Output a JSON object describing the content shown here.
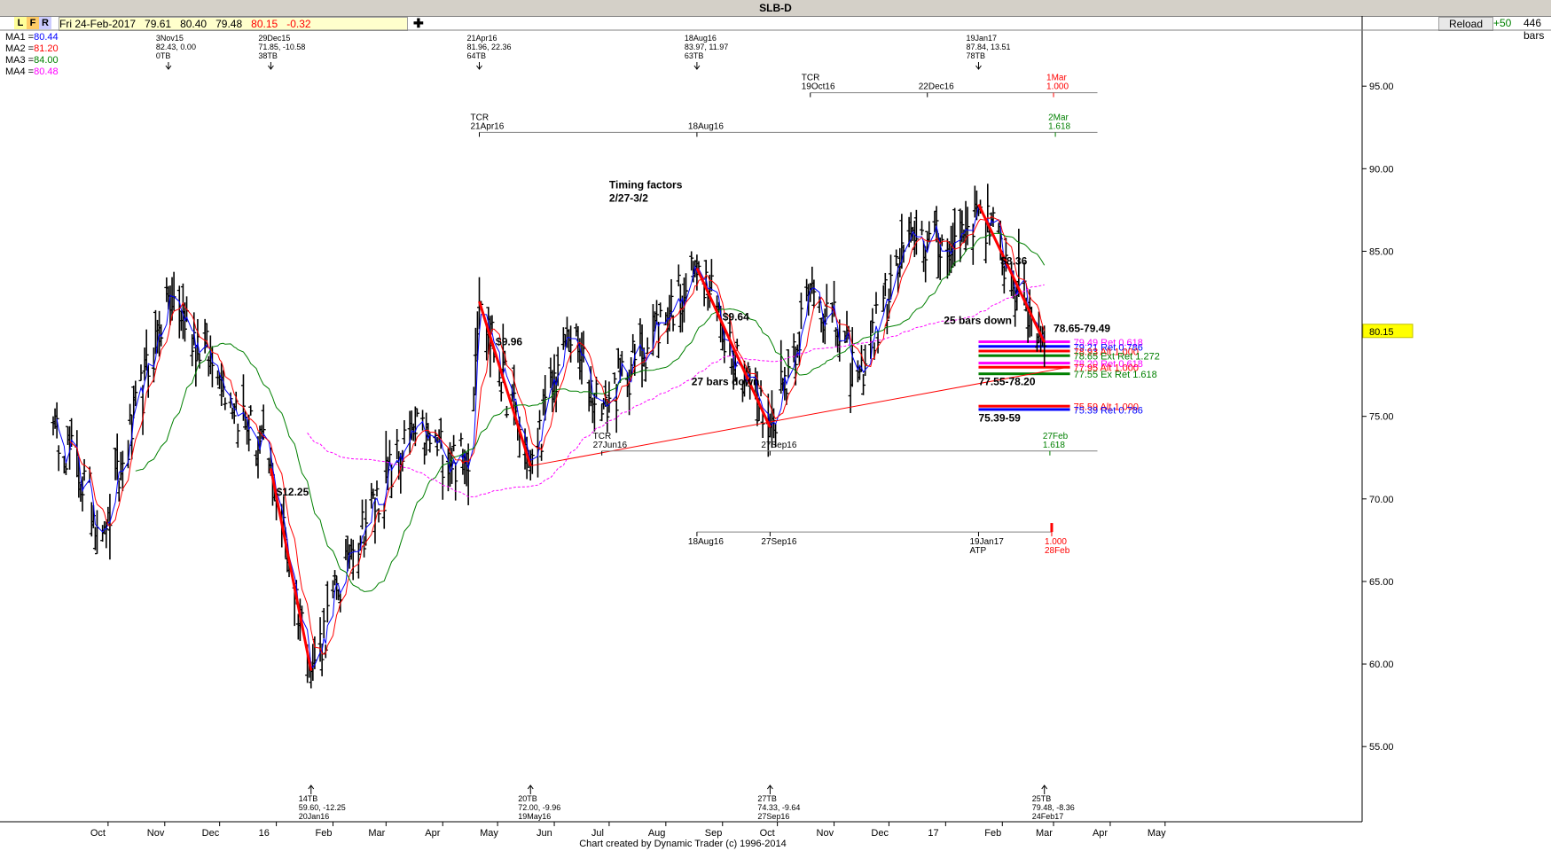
{
  "toolbar": {
    "title": "SLB-D",
    "buttons": [
      "L",
      "F",
      "R"
    ],
    "header_info": "Fri 24-Feb-2017   79.61   80.40   79.48",
    "header_close": "80.15",
    "header_change": "-0.32",
    "plus": "✚",
    "reload": "Reload",
    "plus50": "+50",
    "bars_count": "446 bars"
  },
  "ma_legend": [
    {
      "label": "MA1 =",
      "value": "80.44",
      "color": "#0000ff"
    },
    {
      "label": "MA2 =",
      "value": "81.20",
      "color": "#ff0000"
    },
    {
      "label": "MA3 =",
      "value": "84.00",
      "color": "#008000"
    },
    {
      "label": "MA4 =",
      "value": "80.48",
      "color": "#ff00ff"
    }
  ],
  "footer": "Chart created by Dynamic Trader  (c)  1996-2014",
  "chart_data": {
    "type": "ohlc_bar",
    "title": "SLB-D",
    "ylim": [
      50.5,
      98.5
    ],
    "yticks": [
      "95.00",
      "90.00",
      "85.00",
      "80.00",
      "75.00",
      "70.00",
      "65.00",
      "60.00",
      "55.00"
    ],
    "last_price": "80.15",
    "x_ticks": [
      "Oct",
      "Nov",
      "Dec",
      "16",
      "Feb",
      "Mar",
      "Apr",
      "May",
      "Jun",
      "Jul",
      "Aug",
      "Sep",
      "Oct",
      "Nov",
      "Dec",
      "17",
      "Feb",
      "Mar",
      "Apr",
      "May"
    ],
    "key_points": [
      {
        "date": "2015-09-01",
        "price": 75.0
      },
      {
        "date": "2015-09-29",
        "price": 68.0
      },
      {
        "date": "2015-11-03",
        "price": 82.43
      },
      {
        "date": "2015-12-01",
        "price": 77.5
      },
      {
        "date": "2015-12-29",
        "price": 71.85
      },
      {
        "date": "2016-01-20",
        "price": 59.6
      },
      {
        "date": "2016-02-11",
        "price": 67.0
      },
      {
        "date": "2016-03-15",
        "price": 74.0
      },
      {
        "date": "2016-04-15",
        "price": 72.0
      },
      {
        "date": "2016-04-21",
        "price": 81.96
      },
      {
        "date": "2016-05-19",
        "price": 72.0
      },
      {
        "date": "2016-06-08",
        "price": 80.0
      },
      {
        "date": "2016-06-27",
        "price": 75.5
      },
      {
        "date": "2016-08-18",
        "price": 83.97
      },
      {
        "date": "2016-09-27",
        "price": 74.33
      },
      {
        "date": "2016-10-20",
        "price": 83.0
      },
      {
        "date": "2016-11-14",
        "price": 77.5
      },
      {
        "date": "2016-12-13",
        "price": 86.0
      },
      {
        "date": "2017-01-03",
        "price": 85.0
      },
      {
        "date": "2017-01-19",
        "price": 87.84
      },
      {
        "date": "2017-02-24",
        "price": 79.48
      }
    ],
    "swing_lines": [
      {
        "from": [
          "2015-12-29",
          71.85
        ],
        "to": [
          "2016-01-20",
          59.6
        ],
        "label": "$12.25"
      },
      {
        "from": [
          "2016-04-21",
          81.96
        ],
        "to": [
          "2016-05-19",
          72.0
        ],
        "label": "$9.96"
      },
      {
        "from": [
          "2016-08-18",
          83.97
        ],
        "to": [
          "2016-09-27",
          74.33
        ],
        "label": "$9.64"
      },
      {
        "from": [
          "2017-01-19",
          87.84
        ],
        "to": [
          "2017-02-24",
          79.48
        ],
        "label": "$8.36"
      }
    ],
    "trendline": {
      "from": [
        "2016-05-19",
        72.0
      ],
      "to": [
        "2017-03-10",
        78.0
      ]
    },
    "pivot_labels_top": [
      {
        "date": "2015-11-03",
        "lines": [
          "3Nov15",
          "82.43, 0.00",
          "0TB"
        ]
      },
      {
        "date": "2015-12-29",
        "lines": [
          "29Dec15",
          "71.85, -10.58",
          "38TB"
        ]
      },
      {
        "date": "2016-04-21",
        "lines": [
          "21Apr16",
          "81.96, 22.36",
          "64TB"
        ]
      },
      {
        "date": "2016-08-18",
        "lines": [
          "18Aug16",
          "83.97, 11.97",
          "63TB"
        ]
      },
      {
        "date": "2017-01-19",
        "lines": [
          "19Jan17",
          "87.84, 13.51",
          "78TB"
        ]
      }
    ],
    "pivot_labels_bottom": [
      {
        "date": "2016-01-20",
        "lines": [
          "14TB",
          "59.60, -12.25",
          "20Jan16"
        ]
      },
      {
        "date": "2016-05-19",
        "lines": [
          "20TB",
          "72.00, -9.96",
          "19May16"
        ]
      },
      {
        "date": "2016-09-27",
        "lines": [
          "27TB",
          "74.33, -9.64",
          "27Sep16"
        ]
      },
      {
        "date": "2017-02-24",
        "lines": [
          "25TB",
          "79.48, -8.36",
          "24Feb17"
        ]
      }
    ],
    "annotations": [
      {
        "text": "Timing factors",
        "date": "2016-07-01",
        "price": 88.8
      },
      {
        "text": "2/27-3/2",
        "date": "2016-07-01",
        "price": 88.0
      },
      {
        "text": "27 bars down",
        "date": "2016-08-15",
        "price": 76.9
      },
      {
        "text": "25 bars down",
        "date": "2016-12-31",
        "price": 80.6
      },
      {
        "text": "78.65-79.49",
        "date": "2017-03-01",
        "price": 80.1
      },
      {
        "text": "77.55-78.20",
        "date": "2017-01-19",
        "price": 76.9
      },
      {
        "text": "75.39-59",
        "date": "2017-01-19",
        "price": 74.7
      }
    ],
    "time_markers": [
      {
        "lines": [
          "TCR",
          "21Apr16"
        ],
        "date": "2016-04-21",
        "price": 92.2
      },
      {
        "lines": [
          "18Aug16"
        ],
        "date": "2016-08-18",
        "price": 92.2
      },
      {
        "lines": [
          "TCR",
          "19Oct16"
        ],
        "date": "2016-10-19",
        "price": 94.6
      },
      {
        "lines": [
          "22Dec16"
        ],
        "date": "2016-12-22",
        "price": 94.6
      },
      {
        "lines": [
          "TCR",
          "27Jun16"
        ],
        "date": "2016-06-27",
        "price": 72.9
      },
      {
        "lines": [
          "27Sep16"
        ],
        "date": "2016-09-27",
        "price": 72.9
      },
      {
        "lines": [
          "18Aug16"
        ],
        "date": "2016-08-18",
        "price": 68.0
      },
      {
        "lines": [
          "27Sep16"
        ],
        "date": "2016-09-27",
        "price": 68.0
      },
      {
        "lines": [
          "19Jan17",
          "ATP"
        ],
        "date": "2017-01-19",
        "price": 68.0
      }
    ],
    "time_projections": [
      {
        "lines": [
          "1Mar",
          "1.000"
        ],
        "date": "2017-03-01",
        "price": 94.6,
        "color": "#ff0000"
      },
      {
        "lines": [
          "2Mar",
          "1.618"
        ],
        "date": "2017-03-02",
        "price": 92.2,
        "color": "#008000"
      },
      {
        "lines": [
          "27Feb",
          "1.618"
        ],
        "date": "2017-02-27",
        "price": 72.9,
        "color": "#008000"
      },
      {
        "lines": [
          "1.000",
          "28Feb"
        ],
        "date": "2017-02-28",
        "price": 68.0,
        "color": "#ff0000"
      }
    ],
    "price_levels": [
      {
        "price": 79.49,
        "label": "79.49 Ret 0.618",
        "color": "#ff00ff"
      },
      {
        "price": 79.21,
        "label": "79.21 Ret 0.786",
        "color": "#0000ff"
      },
      {
        "price": 78.93,
        "label": "78.93 Alt 1.000",
        "color": "#ff0000"
      },
      {
        "price": 78.65,
        "label": "78.65 Ext Ret 1.272",
        "color": "#008000"
      },
      {
        "price": 78.2,
        "label": "78.20 Ret 0.618",
        "color": "#ff00ff"
      },
      {
        "price": 77.95,
        "label": "77.95 Alt 1.000",
        "color": "#ff0000"
      },
      {
        "price": 77.55,
        "label": "77.55 Ex Ret 1.618",
        "color": "#008000"
      },
      {
        "price": 75.59,
        "label": "75.59 Alt 1.000",
        "color": "#ff0000"
      },
      {
        "price": 75.39,
        "label": "75.39 Ret 0.786",
        "color": "#0000ff"
      }
    ],
    "moving_averages": [
      {
        "name": "MA1",
        "color": "#0000ff"
      },
      {
        "name": "MA2",
        "color": "#ff0000"
      },
      {
        "name": "MA3",
        "color": "#008000"
      },
      {
        "name": "MA4",
        "color": "#ff00ff"
      }
    ],
    "x_start": "2015-09-01",
    "x_end": "2017-05-20"
  }
}
